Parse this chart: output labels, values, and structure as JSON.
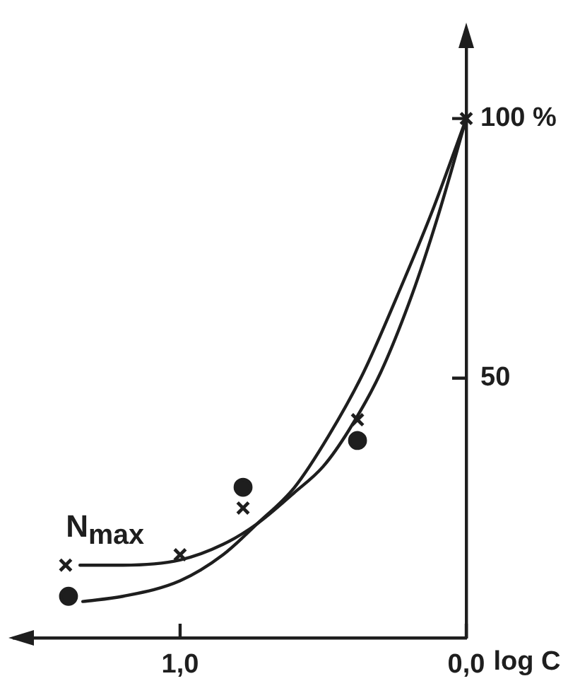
{
  "chart_data": {
    "type": "line",
    "xlabel": "log C",
    "xlim": [
      1.58,
      0
    ],
    "xticks": [
      {
        "value": 1,
        "label": "1,0"
      },
      {
        "value": 0,
        "label": "0,0"
      }
    ],
    "ylim": [
      0,
      117
    ],
    "yticks": [
      50,
      {
        "value": 100,
        "label": "100 %"
      }
    ],
    "legend": false,
    "series": [
      {
        "name": "N$_{max}$",
        "marker": "none",
        "color": "#1e1e1e",
        "x": [
          1.35,
          1.2,
          1.0,
          0.85,
          0.73,
          0.6,
          0.5,
          0.41,
          0.3,
          0.19,
          0.1,
          0
        ],
        "values": [
          14,
          14,
          15,
          18,
          22,
          28,
          33,
          40,
          51,
          66,
          81,
          100
        ]
      },
      {
        "marker": "none",
        "color": "#1e1e1e",
        "x": [
          1.34,
          1.2,
          1.0,
          0.85,
          0.73,
          0.6,
          0.48,
          0.36,
          0.24,
          0.12,
          0
        ],
        "values": [
          7,
          8,
          11,
          16,
          22,
          29,
          39,
          51,
          66,
          82,
          100
        ]
      },
      {
        "type": "scatter",
        "marker": "circle",
        "color": "#1e1e1e",
        "x": [
          1.39,
          0.78,
          0.38
        ],
        "values": [
          8,
          29,
          38
        ]
      },
      {
        "type": "scatter",
        "marker": "cross",
        "color": "#1e1e1e",
        "x": [
          1.4,
          1.0,
          0.78,
          0.38,
          0
        ],
        "values": [
          14,
          16,
          25,
          42,
          100
        ]
      }
    ]
  }
}
